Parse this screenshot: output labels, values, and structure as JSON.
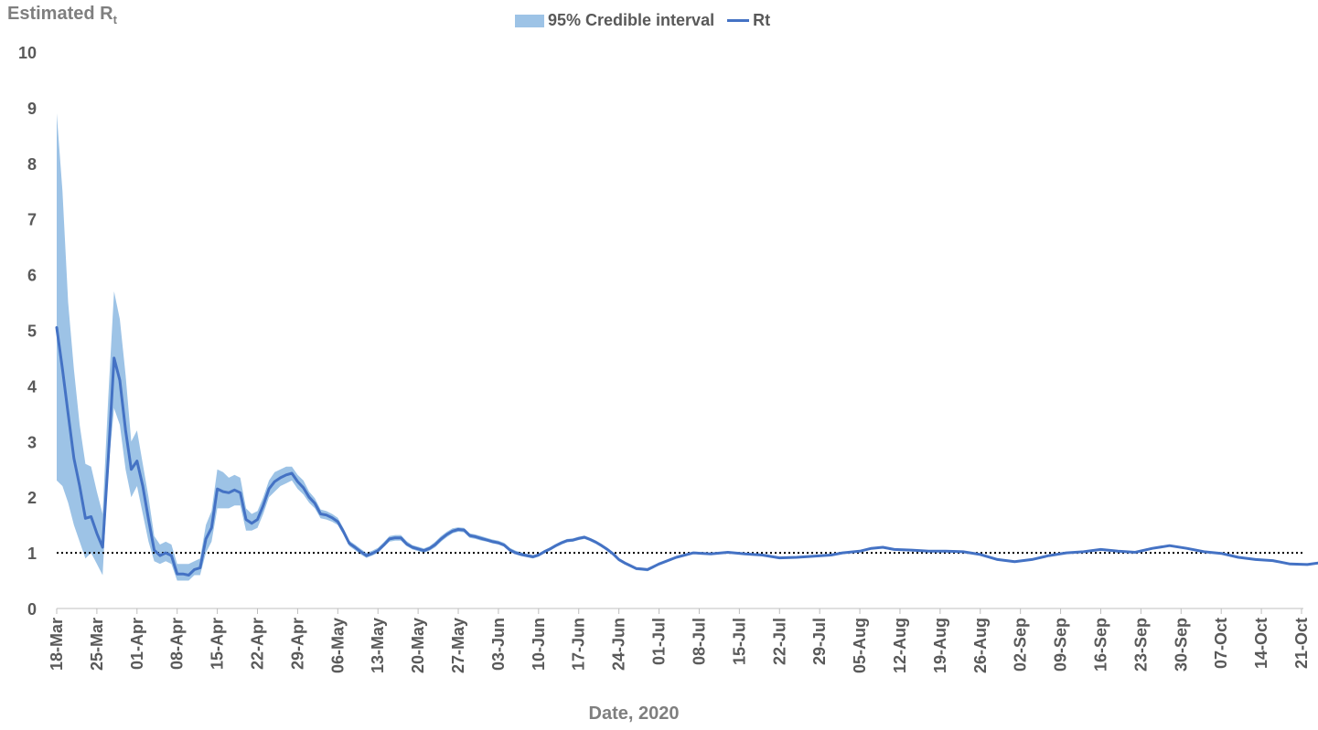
{
  "chart_data": {
    "type": "line",
    "ylabel_main": "Estimated R",
    "ylabel_sub": "t",
    "xlabel": "Date, 2020",
    "ylim": [
      0,
      10
    ],
    "yticks": [
      0,
      1,
      2,
      3,
      4,
      5,
      6,
      7,
      8,
      9,
      10
    ],
    "grid": false,
    "legend_placement": "top-center",
    "reference_line": {
      "y": 1,
      "style": "dotted",
      "color": "#000000"
    },
    "x_tick_labels": [
      "18-Mar",
      "25-Mar",
      "01-Apr",
      "08-Apr",
      "15-Apr",
      "22-Apr",
      "29-Apr",
      "06-May",
      "13-May",
      "20-May",
      "27-May",
      "03-Jun",
      "10-Jun",
      "17-Jun",
      "24-Jun",
      "01-Jul",
      "08-Jul",
      "15-Jul",
      "22-Jul",
      "29-Jul",
      "05-Aug",
      "12-Aug",
      "19-Aug",
      "26-Aug",
      "02-Sep",
      "09-Sep",
      "16-Sep",
      "23-Sep",
      "30-Sep",
      "07-Oct",
      "14-Oct",
      "21-Oct"
    ],
    "series": [
      {
        "name": "95% Credible interval",
        "kind": "band",
        "color": "#9dc3e6",
        "points": [
          [
            "18-Mar",
            2.3,
            8.9
          ],
          [
            "19-Mar",
            2.2,
            7.5
          ],
          [
            "20-Mar",
            1.9,
            5.5
          ],
          [
            "21-Mar",
            1.5,
            4.3
          ],
          [
            "22-Mar",
            1.2,
            3.3
          ],
          [
            "23-Mar",
            0.9,
            2.6
          ],
          [
            "24-Mar",
            1.0,
            2.55
          ],
          [
            "25-Mar",
            0.8,
            2.1
          ],
          [
            "26-Mar",
            0.6,
            1.7
          ],
          [
            "27-Mar",
            2.5,
            3.8
          ],
          [
            "28-Mar",
            3.6,
            5.7
          ],
          [
            "29-Mar",
            3.3,
            5.2
          ],
          [
            "30-Mar",
            2.5,
            4.2
          ],
          [
            "31-Mar",
            2.0,
            3.0
          ],
          [
            "01-Apr",
            2.2,
            3.2
          ],
          [
            "02-Apr",
            1.7,
            2.6
          ],
          [
            "03-Apr",
            1.2,
            2.0
          ],
          [
            "04-Apr",
            0.85,
            1.3
          ],
          [
            "05-Apr",
            0.8,
            1.15
          ],
          [
            "06-Apr",
            0.85,
            1.2
          ],
          [
            "07-Apr",
            0.8,
            1.15
          ],
          [
            "08-Apr",
            0.5,
            0.8
          ],
          [
            "09-Apr",
            0.5,
            0.8
          ],
          [
            "10-Apr",
            0.5,
            0.8
          ],
          [
            "11-Apr",
            0.6,
            0.85
          ],
          [
            "12-Apr",
            0.6,
            0.9
          ],
          [
            "13-Apr",
            1.0,
            1.5
          ],
          [
            "14-Apr",
            1.2,
            1.75
          ],
          [
            "15-Apr",
            1.8,
            2.5
          ],
          [
            "16-Apr",
            1.8,
            2.45
          ],
          [
            "17-Apr",
            1.8,
            2.35
          ],
          [
            "18-Apr",
            1.85,
            2.4
          ],
          [
            "19-Apr",
            1.85,
            2.35
          ],
          [
            "20-Apr",
            1.4,
            1.8
          ],
          [
            "21-Apr",
            1.4,
            1.7
          ],
          [
            "22-Apr",
            1.45,
            1.75
          ],
          [
            "23-Apr",
            1.7,
            2.0
          ],
          [
            "24-Apr",
            2.0,
            2.3
          ],
          [
            "25-Apr",
            2.1,
            2.45
          ],
          [
            "26-Apr",
            2.2,
            2.5
          ],
          [
            "27-Apr",
            2.25,
            2.55
          ],
          [
            "28-Apr",
            2.3,
            2.55
          ],
          [
            "29-Apr",
            2.15,
            2.4
          ],
          [
            "30-Apr",
            2.05,
            2.3
          ],
          [
            "01-May",
            1.9,
            2.1
          ],
          [
            "02-May",
            1.8,
            1.98
          ],
          [
            "03-May",
            1.62,
            1.78
          ],
          [
            "04-May",
            1.6,
            1.75
          ],
          [
            "05-May",
            1.56,
            1.7
          ],
          [
            "06-May",
            1.5,
            1.63
          ],
          [
            "07-May",
            1.32,
            1.44
          ],
          [
            "08-May",
            1.12,
            1.22
          ],
          [
            "09-May",
            1.05,
            1.15
          ],
          [
            "10-May",
            0.97,
            1.07
          ],
          [
            "11-May",
            0.91,
            1.0
          ],
          [
            "12-May",
            0.95,
            1.04
          ],
          [
            "13-May",
            1.0,
            1.09
          ],
          [
            "14-May",
            1.1,
            1.19
          ],
          [
            "15-May",
            1.2,
            1.3
          ],
          [
            "16-May",
            1.22,
            1.32
          ],
          [
            "17-May",
            1.22,
            1.32
          ],
          [
            "18-May",
            1.12,
            1.21
          ],
          [
            "19-May",
            1.06,
            1.14
          ],
          [
            "20-May",
            1.03,
            1.11
          ],
          [
            "21-May",
            1.0,
            1.08
          ],
          [
            "22-May",
            1.04,
            1.12
          ],
          [
            "23-May",
            1.1,
            1.2
          ],
          [
            "24-May",
            1.2,
            1.3
          ],
          [
            "25-May",
            1.28,
            1.38
          ],
          [
            "26-May",
            1.35,
            1.44
          ],
          [
            "27-May",
            1.38,
            1.46
          ],
          [
            "28-May",
            1.37,
            1.45
          ],
          [
            "29-May",
            1.27,
            1.35
          ],
          [
            "30-May",
            1.25,
            1.33
          ],
          [
            "31-May",
            1.22,
            1.3
          ],
          [
            "01-Jun",
            1.2,
            1.27
          ],
          [
            "02-Jun",
            1.17,
            1.24
          ],
          [
            "03-Jun",
            1.15,
            1.22
          ],
          [
            "04-Jun",
            1.11,
            1.18
          ],
          [
            "05-Jun",
            1.02,
            1.09
          ],
          [
            "06-Jun",
            0.97,
            1.04
          ],
          [
            "07-Jun",
            0.94,
            1.01
          ],
          [
            "08-Jun",
            0.92,
            0.98
          ],
          [
            "09-Jun",
            0.9,
            0.96
          ],
          [
            "10-Jun",
            0.93,
            0.99
          ],
          [
            "11-Jun",
            0.99,
            1.05
          ],
          [
            "12-Jun",
            1.04,
            1.1
          ],
          [
            "13-Jun",
            1.1,
            1.16
          ],
          [
            "14-Jun",
            1.15,
            1.21
          ],
          [
            "15-Jun",
            1.19,
            1.25
          ],
          [
            "16-Jun",
            1.2,
            1.26
          ],
          [
            "17-Jun",
            1.23,
            1.29
          ],
          [
            "18-Jun",
            1.25,
            1.31
          ],
          [
            "19-Jun",
            1.21,
            1.27
          ],
          [
            "20-Jun",
            1.16,
            1.22
          ],
          [
            "21-Jun",
            1.1,
            1.16
          ],
          [
            "22-Jun",
            1.03,
            1.09
          ],
          [
            "23-Jun",
            0.95,
            1.01
          ],
          [
            "24-Jun",
            0.85,
            0.9
          ],
          [
            "25-Jun",
            0.79,
            0.84
          ],
          [
            "26-Jun",
            0.74,
            0.79
          ],
          [
            "27-Jun",
            0.69,
            0.74
          ],
          [
            "28-Jun",
            0.68,
            0.73
          ],
          [
            "29-Jun",
            0.67,
            0.72
          ],
          [
            "30-Jun",
            0.72,
            0.77
          ],
          [
            "01-Jul",
            0.78,
            0.83
          ]
        ]
      },
      {
        "name": "Rt",
        "kind": "line",
        "color": "#4472c4",
        "points": [
          [
            "18-Mar",
            5.05
          ],
          [
            "19-Mar",
            4.3
          ],
          [
            "20-Mar",
            3.5
          ],
          [
            "21-Mar",
            2.7
          ],
          [
            "22-Mar",
            2.2
          ],
          [
            "23-Mar",
            1.62
          ],
          [
            "24-Mar",
            1.65
          ],
          [
            "25-Mar",
            1.35
          ],
          [
            "26-Mar",
            1.1
          ],
          [
            "27-Mar",
            2.7
          ],
          [
            "28-Mar",
            4.5
          ],
          [
            "29-Mar",
            4.1
          ],
          [
            "30-Mar",
            3.2
          ],
          [
            "31-Mar",
            2.5
          ],
          [
            "01-Apr",
            2.65
          ],
          [
            "02-Apr",
            2.2
          ],
          [
            "03-Apr",
            1.6
          ],
          [
            "04-Apr",
            1.05
          ],
          [
            "05-Apr",
            0.95
          ],
          [
            "06-Apr",
            1.0
          ],
          [
            "07-Apr",
            0.95
          ],
          [
            "08-Apr",
            0.62
          ],
          [
            "09-Apr",
            0.62
          ],
          [
            "10-Apr",
            0.6
          ],
          [
            "11-Apr",
            0.7
          ],
          [
            "12-Apr",
            0.73
          ],
          [
            "13-Apr",
            1.25
          ],
          [
            "14-Apr",
            1.45
          ],
          [
            "15-Apr",
            2.15
          ],
          [
            "16-Apr",
            2.1
          ],
          [
            "17-Apr",
            2.08
          ],
          [
            "18-Apr",
            2.13
          ],
          [
            "19-Apr",
            2.08
          ],
          [
            "20-Apr",
            1.6
          ],
          [
            "21-Apr",
            1.53
          ],
          [
            "22-Apr",
            1.6
          ],
          [
            "23-Apr",
            1.85
          ],
          [
            "24-Apr",
            2.15
          ],
          [
            "25-Apr",
            2.28
          ],
          [
            "26-Apr",
            2.35
          ],
          [
            "27-Apr",
            2.4
          ],
          [
            "28-Apr",
            2.43
          ],
          [
            "29-Apr",
            2.28
          ],
          [
            "30-Apr",
            2.17
          ],
          [
            "01-May",
            2.0
          ],
          [
            "02-May",
            1.89
          ],
          [
            "03-May",
            1.7
          ],
          [
            "04-May",
            1.68
          ],
          [
            "05-May",
            1.63
          ],
          [
            "06-May",
            1.56
          ],
          [
            "07-May",
            1.38
          ],
          [
            "08-May",
            1.17
          ],
          [
            "09-May",
            1.1
          ],
          [
            "10-May",
            1.02
          ],
          [
            "11-May",
            0.95
          ],
          [
            "12-May",
            0.99
          ],
          [
            "13-May",
            1.04
          ],
          [
            "14-May",
            1.14
          ],
          [
            "15-May",
            1.25
          ],
          [
            "16-May",
            1.27
          ],
          [
            "17-May",
            1.27
          ],
          [
            "18-May",
            1.16
          ],
          [
            "19-May",
            1.1
          ],
          [
            "20-May",
            1.07
          ],
          [
            "21-May",
            1.04
          ],
          [
            "22-May",
            1.08
          ],
          [
            "23-May",
            1.15
          ],
          [
            "24-May",
            1.25
          ],
          [
            "25-May",
            1.33
          ],
          [
            "26-May",
            1.39
          ],
          [
            "27-May",
            1.42
          ],
          [
            "28-May",
            1.41
          ],
          [
            "29-May",
            1.31
          ],
          [
            "30-May",
            1.29
          ],
          [
            "31-May",
            1.26
          ],
          [
            "01-Jun",
            1.23
          ],
          [
            "02-Jun",
            1.2
          ],
          [
            "03-Jun",
            1.18
          ],
          [
            "04-Jun",
            1.14
          ],
          [
            "05-Jun",
            1.05
          ],
          [
            "06-Jun",
            1.0
          ],
          [
            "07-Jun",
            0.97
          ],
          [
            "08-Jun",
            0.95
          ],
          [
            "09-Jun",
            0.93
          ],
          [
            "10-Jun",
            0.96
          ],
          [
            "11-Jun",
            1.02
          ],
          [
            "12-Jun",
            1.07
          ],
          [
            "13-Jun",
            1.13
          ],
          [
            "14-Jun",
            1.18
          ],
          [
            "15-Jun",
            1.22
          ],
          [
            "16-Jun",
            1.23
          ],
          [
            "17-Jun",
            1.26
          ],
          [
            "18-Jun",
            1.28
          ],
          [
            "19-Jun",
            1.24
          ],
          [
            "20-Jun",
            1.19
          ],
          [
            "21-Jun",
            1.13
          ],
          [
            "22-Jun",
            1.06
          ],
          [
            "23-Jun",
            0.98
          ],
          [
            "24-Jun",
            0.88
          ],
          [
            "25-Jun",
            0.82
          ],
          [
            "26-Jun",
            0.77
          ],
          [
            "27-Jun",
            0.72
          ],
          [
            "28-Jun",
            0.71
          ],
          [
            "29-Jun",
            0.7
          ],
          [
            "30-Jun",
            0.75
          ],
          [
            "01-Jul",
            0.8
          ],
          [
            "04-Jul",
            0.92
          ],
          [
            "07-Jul",
            1.0
          ],
          [
            "10-Jul",
            0.98
          ],
          [
            "13-Jul",
            1.01
          ],
          [
            "16-Jul",
            0.98
          ],
          [
            "19-Jul",
            0.96
          ],
          [
            "22-Jul",
            0.91
          ],
          [
            "25-Jul",
            0.92
          ],
          [
            "28-Jul",
            0.94
          ],
          [
            "31-Jul",
            0.96
          ],
          [
            "02-Aug",
            1.0
          ],
          [
            "05-Aug",
            1.03
          ],
          [
            "07-Aug",
            1.08
          ],
          [
            "09-Aug",
            1.1
          ],
          [
            "11-Aug",
            1.06
          ],
          [
            "14-Aug",
            1.05
          ],
          [
            "17-Aug",
            1.03
          ],
          [
            "20-Aug",
            1.03
          ],
          [
            "23-Aug",
            1.02
          ],
          [
            "26-Aug",
            0.97
          ],
          [
            "29-Aug",
            0.88
          ],
          [
            "01-Sep",
            0.84
          ],
          [
            "04-Sep",
            0.88
          ],
          [
            "07-Sep",
            0.95
          ],
          [
            "10-Sep",
            1.0
          ],
          [
            "13-Sep",
            1.02
          ],
          [
            "16-Sep",
            1.06
          ],
          [
            "19-Sep",
            1.03
          ],
          [
            "22-Sep",
            1.01
          ],
          [
            "25-Sep",
            1.08
          ],
          [
            "28-Sep",
            1.13
          ],
          [
            "01-Oct",
            1.08
          ],
          [
            "04-Oct",
            1.02
          ],
          [
            "07-Oct",
            0.99
          ],
          [
            "10-Oct",
            0.92
          ],
          [
            "13-Oct",
            0.88
          ],
          [
            "16-Oct",
            0.86
          ],
          [
            "19-Oct",
            0.8
          ],
          [
            "22-Oct",
            0.79
          ],
          [
            "24-Oct",
            0.82
          ]
        ]
      }
    ]
  }
}
